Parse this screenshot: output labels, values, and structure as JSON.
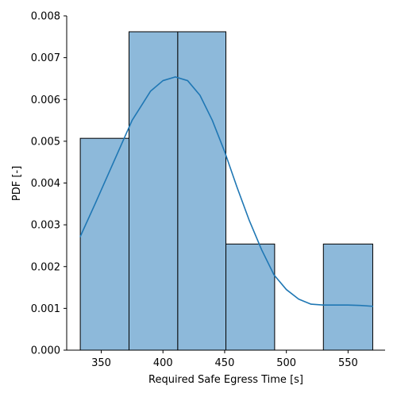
{
  "chart_data": {
    "type": "bar",
    "title": "",
    "xlabel": "Required Safe Egress Time [s]",
    "ylabel": "PDF [-]",
    "xlim": [
      322,
      580
    ],
    "ylim": [
      0,
      0.008
    ],
    "grid": false,
    "x_ticks": [
      {
        "value": 350,
        "label": "350"
      },
      {
        "value": 400,
        "label": "400"
      },
      {
        "value": 450,
        "label": "450"
      },
      {
        "value": 500,
        "label": "500"
      },
      {
        "value": 550,
        "label": "550"
      }
    ],
    "y_ticks": [
      {
        "value": 0.0,
        "label": "0.000"
      },
      {
        "value": 0.001,
        "label": "0.001"
      },
      {
        "value": 0.002,
        "label": "0.002"
      },
      {
        "value": 0.003,
        "label": "0.003"
      },
      {
        "value": 0.004,
        "label": "0.004"
      },
      {
        "value": 0.005,
        "label": "0.005"
      },
      {
        "value": 0.006,
        "label": "0.006"
      },
      {
        "value": 0.007,
        "label": "0.007"
      },
      {
        "value": 0.008,
        "label": "0.008"
      }
    ],
    "bins": [
      {
        "x0": 333,
        "x1": 372.5,
        "value": 0.00507
      },
      {
        "x0": 372.5,
        "x1": 412,
        "value": 0.00762
      },
      {
        "x0": 412,
        "x1": 451,
        "value": 0.00762
      },
      {
        "x0": 451,
        "x1": 490.5,
        "value": 0.00254
      },
      {
        "x0": 490.5,
        "x1": 530,
        "value": 0.0
      },
      {
        "x0": 530,
        "x1": 570,
        "value": 0.00254
      }
    ],
    "kde": {
      "x": [
        333,
        345,
        360,
        375,
        390,
        400,
        410,
        420,
        430,
        440,
        450,
        460,
        470,
        480,
        490,
        500,
        510,
        520,
        530,
        540,
        550,
        560,
        570
      ],
      "y": [
        0.00272,
        0.0035,
        0.0045,
        0.0055,
        0.0062,
        0.00645,
        0.00654,
        0.00645,
        0.0061,
        0.0055,
        0.00475,
        0.0039,
        0.0031,
        0.0024,
        0.0018,
        0.00145,
        0.00122,
        0.0011,
        0.00108,
        0.00108,
        0.00108,
        0.00107,
        0.00105
      ]
    },
    "colors": {
      "bar_fill": "#8db9da",
      "bar_edge": "#000000",
      "kde_line": "#1f77b4",
      "axis": "#000000"
    }
  }
}
